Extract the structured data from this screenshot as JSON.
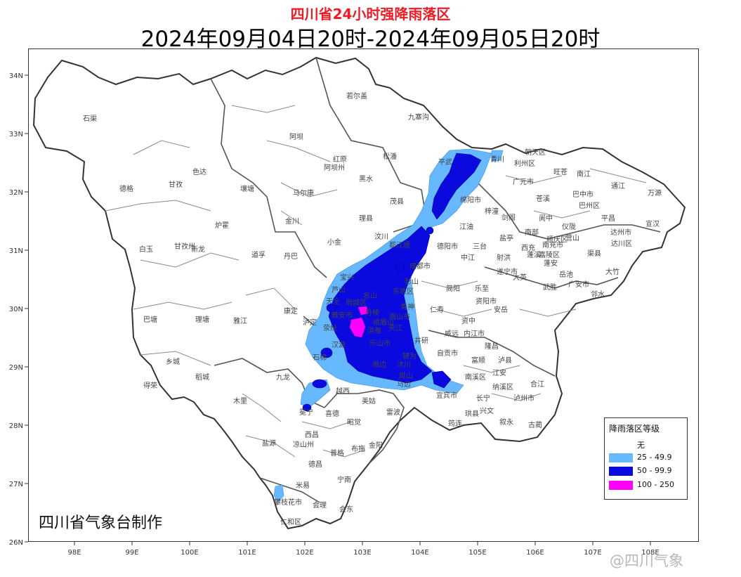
{
  "title": "四川省24小时强降雨落区",
  "subtitle": "2024年09月04日20时-2024年09月05日20时",
  "credit": "四川省气象台制作",
  "watermark": "@四川气象",
  "axes": {
    "lon_ticks": [
      "98E",
      "99E",
      "100E",
      "101E",
      "102E",
      "103E",
      "104E",
      "105E",
      "106E",
      "107E",
      "108E"
    ],
    "lat_ticks": [
      "34N",
      "33N",
      "32N",
      "31N",
      "30N",
      "29N",
      "28N",
      "27N",
      "26N"
    ]
  },
  "legend": {
    "title": "降雨落区等级",
    "items": [
      {
        "label": "无",
        "color": "#ffffff"
      },
      {
        "label": "25 - 49.9",
        "color": "#66b8ff"
      },
      {
        "label": "50 - 99.9",
        "color": "#0a0adf"
      },
      {
        "label": "100 - 250",
        "color": "#ff00ff"
      }
    ]
  },
  "places": {
    "石渠": "石渠",
    "若尔盖": "若尔盖",
    "九寨沟": "九寨沟",
    "阿坝": "阿坝",
    "红原": "红原",
    "阿坝州": "阿坝州",
    "松潘": "松潘",
    "色达": "色达",
    "德格": "德格",
    "甘孜": "甘孜",
    "壤塘": "壤塘",
    "马尔康": "马尔康",
    "黑水": "黑水",
    "茂县": "茂县",
    "理县": "理县",
    "金川": "金川",
    "炉霍": "炉霍",
    "小金": "小金",
    "汶川": "汶川",
    "白玉": "白玉",
    "甘孜州": "甘孜州",
    "新龙": "新龙",
    "道孚": "道孚",
    "丹巴": "丹巴",
    "宝兴": "宝兴",
    "巴塘": "巴塘",
    "理塘": "理塘",
    "雅江": "雅江",
    "康定": "康定",
    "泸定": "泸定",
    "乡城": "乡城",
    "稻城": "稻城",
    "九龙": "九龙",
    "得荣": "得荣",
    "木里": "木里",
    "冕宁": "冕宁",
    "越西": "越西",
    "美姑": "美姑",
    "喜德": "喜德",
    "昭觉": "昭觉",
    "雷波": "雷波",
    "盐源": "盐源",
    "西昌": "西昌",
    "凉山州": "凉山州",
    "普格": "普格",
    "布拖": "布拖",
    "金阳": "金阳",
    "德昌": "德昌",
    "宁南": "宁南",
    "米易": "米易",
    "攀枝花市": "攀枝花市",
    "会理": "会理",
    "会东": "会东",
    "仁和区": "仁和区",
    "广元市": "广元市",
    "朝天区": "朝天区",
    "利州区": "利州区",
    "旺苍": "旺苍",
    "南江": "南江",
    "巴中市": "巴中市",
    "通江": "通江",
    "万源": "万源",
    "青川": "青川",
    "平武": "平武",
    "剑阁": "剑阁",
    "苍溪": "苍溪",
    "巴州区": "巴州区",
    "宣汉": "宣汉",
    "绵阳市": "绵阳市",
    "梓潼": "梓潼",
    "阆中": "阆中",
    "仪陇": "仪陇",
    "平昌": "平昌",
    "达州市": "达州市",
    "达川区": "达川区",
    "南部": "南部",
    "江油": "江油",
    "三台": "三台",
    "盐亭": "盐亭",
    "西充": "西充",
    "南充市": "南充市",
    "营山": "营山",
    "渠县": "渠县",
    "大竹": "大竹",
    "德阳市": "德阳市",
    "中江": "中江",
    "射洪": "射洪",
    "遂宁市": "遂宁市",
    "蓬溪": "蓬溪",
    "岳池": "岳池",
    "广安市": "广安市",
    "邻水": "邻水",
    "成都市": "成都市",
    "都江堰": "都江堰",
    "简阳": "简阳",
    "乐至": "乐至",
    "安岳": "安岳",
    "资阳市": "资阳市",
    "大英": "大英",
    "武胜": "武胜",
    "雅安市": "雅安市",
    "眉山市": "眉山市",
    "乐山市": "乐山市",
    "仁寿": "仁寿",
    "资中": "资中",
    "内江市": "内江市",
    "威远": "威远",
    "自贡市": "自贡市",
    "宜宾市": "宜宾市",
    "南溪区": "南溪区",
    "江安": "江安",
    "纳溪区": "纳溪区",
    "泸州市": "泸州市",
    "泸县": "泸县",
    "合江": "合江",
    "叙永": "叙永",
    "古蔺": "古蔺",
    "珙县": "珙县",
    "筠连": "筠连",
    "兴文": "兴文",
    "长宁": "长宁",
    "富顺": "富顺",
    "隆昌": "隆昌",
    "马边": "马边",
    "屏山": "屏山",
    "沐川": "沐川",
    "峨边": "峨边",
    "石棉": "石棉",
    "汉源": "汉源",
    "天全": "天全",
    "芦山": "芦山",
    "荥经": "荥经",
    "雨城区": "雨城区",
    "名山": "名山",
    "洪雅": "洪雅",
    "犍为": "犍为",
    "井研": "井研",
    "夹江": "夹江",
    "峨眉山": "峨眉山",
    "东坡区": "东坡区",
    "彭山": "彭山",
    "丹棱": "丹棱",
    "青神": "青神",
    "蓬安": "蓬安",
    "嘉陵区": "嘉陵区",
    "顺庆区": "顺庆区"
  }
}
